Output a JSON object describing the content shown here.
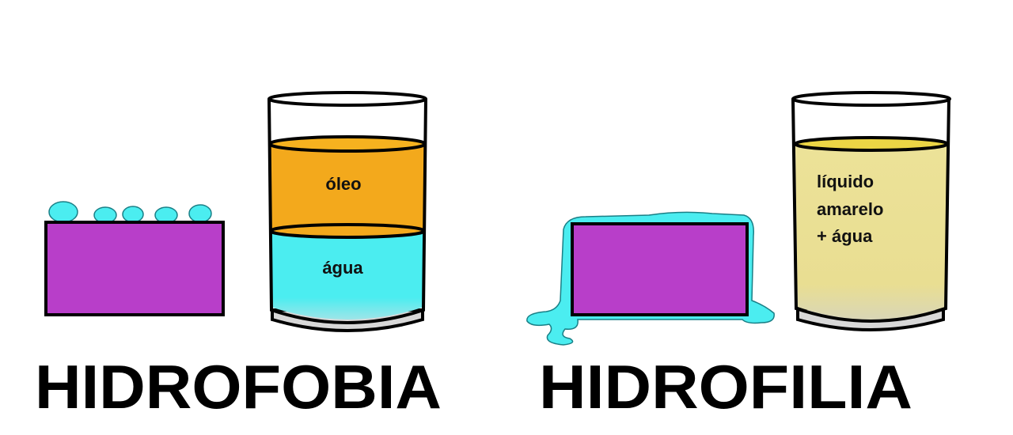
{
  "left_panel": {
    "title": "HIDROFOBIA",
    "glass": {
      "top_layer_label": "óleo",
      "bottom_layer_label": "água"
    }
  },
  "right_panel": {
    "title": "HIDROFILIA",
    "glass": {
      "label_line_1": "líquido",
      "label_line_2": "amarelo",
      "label_line_3": "+ água"
    }
  },
  "colors": {
    "block": "#b83ec9",
    "water": "#4bedf0",
    "oil": "#f3a91c",
    "yellow_liquid": "#ebe196",
    "outline": "#000000"
  }
}
